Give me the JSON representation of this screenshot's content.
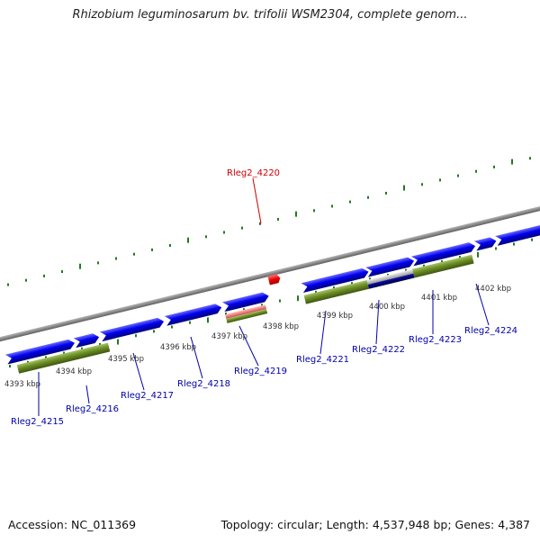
{
  "title": "Rhizobium leguminosarum bv. trifolii WSM2304, complete genom...",
  "accession_label": "Accession: NC_011369",
  "summary_label": "Topology: circular; Length: 4,537,948 bp; Genes: 4,387",
  "colors": {
    "background": "#ffffff",
    "backbone": "#8c8c8c",
    "ruler": "#1f7a1f",
    "gene": "#0000ee",
    "cds": "#6b8e23",
    "pseudo": "#b0b0b0",
    "selected_gene": "#ff2020",
    "selected_cds": "#f08080",
    "label": "#0000aa",
    "selected_label": "#cc0000",
    "tick_label": "#333333"
  },
  "ruler_labels": [
    "4393 kbp",
    "4394 kbp",
    "4395 kbp",
    "4396 kbp",
    "4397 kbp",
    "4398 kbp",
    "4399 kbp",
    "4400 kbp",
    "4401 kbp",
    "4402 kbp"
  ],
  "gene_labels": {
    "rleg2_4215": "Rleg2_4215",
    "rleg2_4216": "Rleg2_4216",
    "rleg2_4217": "Rleg2_4217",
    "rleg2_4218": "Rleg2_4218",
    "rleg2_4219": "Rleg2_4219",
    "rleg2_4220": "Rleg2_4220",
    "rleg2_4221": "Rleg2_4221",
    "rleg2_4222": "Rleg2_4222",
    "rleg2_4223": "Rleg2_4223",
    "rleg2_4224": "Rleg2_4224"
  },
  "selected_gene": "Rleg2_4220"
}
